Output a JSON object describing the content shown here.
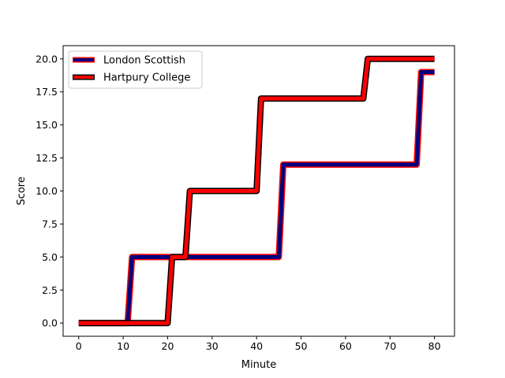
{
  "chart_data": {
    "type": "line",
    "title": "",
    "xlabel": "Minute",
    "ylabel": "Score",
    "xlim": [
      -3.5,
      84.5
    ],
    "ylim": [
      -1,
      21
    ],
    "xticks": [
      0,
      10,
      20,
      30,
      40,
      50,
      60,
      70,
      80
    ],
    "xtick_labels": [
      "0",
      "10",
      "20",
      "30",
      "40",
      "50",
      "60",
      "70",
      "80"
    ],
    "yticks": [
      0,
      2.5,
      5,
      7.5,
      10,
      12.5,
      15,
      17.5,
      20
    ],
    "ytick_labels": [
      "0.0",
      "2.5",
      "5.0",
      "7.5",
      "10.0",
      "12.5",
      "15.0",
      "17.5",
      "20.0"
    ],
    "grid": false,
    "legend": "upper-left",
    "series": [
      {
        "name": "London Scottish",
        "line_color": "#000080",
        "edge_color": "#ff0000",
        "x": [
          0,
          11,
          12,
          20,
          21,
          45,
          46,
          76,
          77,
          80
        ],
        "y": [
          0,
          0,
          5,
          5,
          5,
          5,
          12,
          12,
          19,
          19
        ]
      },
      {
        "name": "Hartpury College",
        "line_color": "#ff0000",
        "edge_color": "#000000",
        "x": [
          0,
          20,
          21,
          24,
          25,
          40,
          41,
          64,
          65,
          80
        ],
        "y": [
          0,
          0,
          5,
          5,
          10,
          10,
          17,
          17,
          20,
          20
        ]
      }
    ]
  }
}
